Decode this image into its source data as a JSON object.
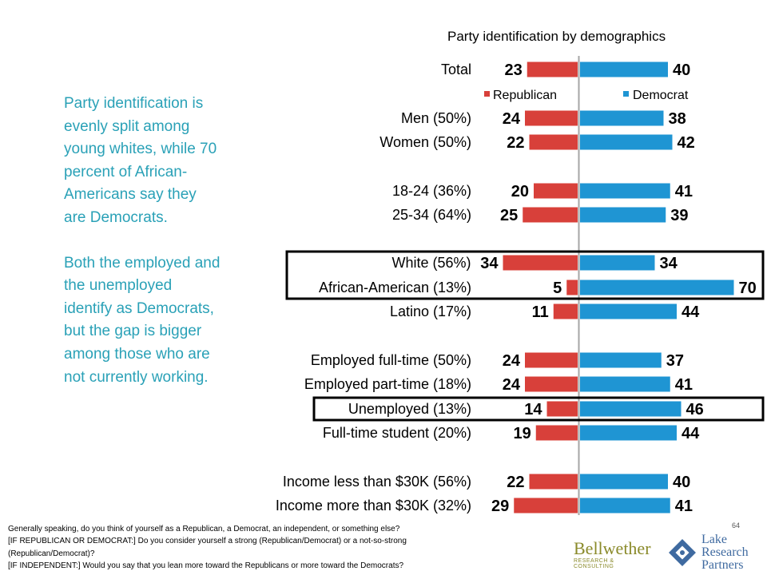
{
  "sidebar": {
    "paragraph_1": "Party identification is evenly split among young whites, while 70 percent of African-Americans say they are Democrats.",
    "paragraph_2": "Both the employed and the unemployed identify as Democrats, but the gap is bigger among those who are not currently working."
  },
  "chart_data": {
    "type": "bar",
    "orientation": "horizontal-diverging",
    "title": "Party identification by demographics",
    "legend_position": "top",
    "grid": false,
    "series": [
      {
        "name": "Republican",
        "color": "#d8403a",
        "direction": "left"
      },
      {
        "name": "Democrat",
        "color": "#1f95d3",
        "direction": "right"
      }
    ],
    "rows": [
      {
        "label": "Total",
        "republican": 23,
        "democrat": 40,
        "highlighted": false
      },
      {
        "label": "Men (50%)",
        "republican": 24,
        "democrat": 38,
        "highlighted": false
      },
      {
        "label": "Women (50%)",
        "republican": 22,
        "democrat": 42,
        "highlighted": false
      },
      {
        "label": "18-24 (36%)",
        "republican": 20,
        "democrat": 41,
        "highlighted": false
      },
      {
        "label": "25-34 (64%)",
        "republican": 25,
        "democrat": 39,
        "highlighted": false
      },
      {
        "label": "White (56%)",
        "republican": 34,
        "democrat": 34,
        "highlighted": true
      },
      {
        "label": "African-American (13%)",
        "republican": 5,
        "democrat": 70,
        "highlighted": true
      },
      {
        "label": "Latino (17%)",
        "republican": 11,
        "democrat": 44,
        "highlighted": false
      },
      {
        "label": "Employed full-time (50%)",
        "republican": 24,
        "democrat": 37,
        "highlighted": false
      },
      {
        "label": "Employed part-time (18%)",
        "republican": 24,
        "democrat": 41,
        "highlighted": false
      },
      {
        "label": "Unemployed (13%)",
        "republican": 14,
        "democrat": 46,
        "highlighted": true
      },
      {
        "label": "Full-time student (20%)",
        "republican": 19,
        "democrat": 44,
        "highlighted": false
      },
      {
        "label": "Income less than $30K (56%)",
        "republican": 22,
        "democrat": 40,
        "highlighted": false
      },
      {
        "label": "Income more than $30K (32%)",
        "republican": 29,
        "democrat": 41,
        "highlighted": false
      }
    ]
  },
  "footnote": {
    "line_1": "Generally speaking, do you think of yourself as a Republican, a Democrat, an independent, or something else?",
    "line_2": "[IF REPUBLICAN OR DEMOCRAT:]  Do you consider yourself a strong (Republican/Democrat) or a not-so-strong (Republican/Democrat)?",
    "line_3": "[IF INDEPENDENT:]    Would you say that you lean more toward the Republicans or more toward the Democrats?"
  },
  "page_number": "64",
  "logos": {
    "bellwether_name": "Bellwether",
    "bellwether_tagline": "RESEARCH & CONSULTING",
    "bellwether_color": "#8a8a2a",
    "lake_line_1": "Lake",
    "lake_line_2": "Research",
    "lake_line_3": "Partners",
    "lake_color": "#3f6aa0"
  }
}
